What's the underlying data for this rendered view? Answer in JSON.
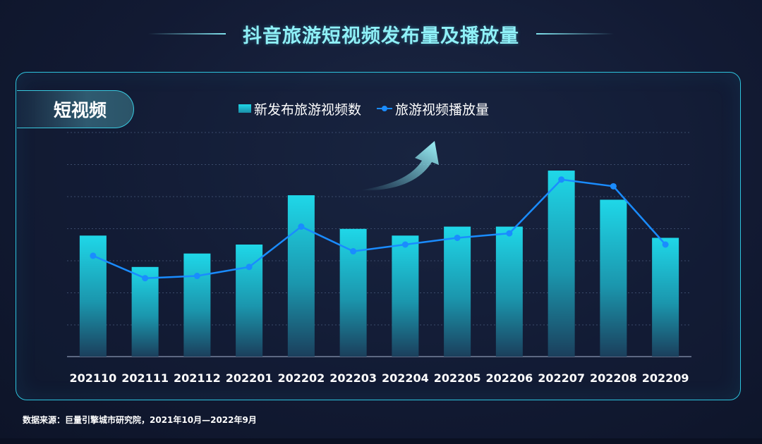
{
  "title": "抖音旅游短视频发布量及播放量",
  "tab_label": "短视频",
  "source": "数据来源：巨量引擎城市研究院，2021年10月—2022年9月",
  "colors": {
    "bar_top": "#1fd7e8",
    "bar_bottom": "#1b3f5c",
    "line": "#1a8cff",
    "accent": "#2ec3dd",
    "title": "#8ff0f7"
  },
  "chart_data": {
    "type": "bar",
    "categories": [
      "202110",
      "202111",
      "202112",
      "202201",
      "202202",
      "202203",
      "202204",
      "202205",
      "202206",
      "202207",
      "202208",
      "202209"
    ],
    "series": [
      {
        "name": "新发布旅游视频数",
        "type": "bar",
        "values": [
          5.4,
          4.0,
          4.6,
          5.0,
          7.2,
          5.7,
          5.4,
          5.8,
          5.8,
          8.3,
          7.0,
          5.3
        ]
      },
      {
        "name": "旅游视频播放量",
        "type": "line",
        "values": [
          4.5,
          3.5,
          3.6,
          4.0,
          5.8,
          4.7,
          5.0,
          5.3,
          5.5,
          7.9,
          7.6,
          5.0
        ]
      }
    ],
    "ylim": [
      0,
      10
    ],
    "grid": true,
    "legend": "top-center",
    "decoration": "upward-arrow"
  }
}
